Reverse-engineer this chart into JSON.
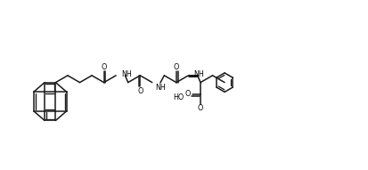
{
  "background_color": "#ffffff",
  "line_color": "#1a1a1a",
  "line_width": 1.1,
  "figsize": [
    4.13,
    1.91
  ],
  "dpi": 100,
  "xlim": [
    0,
    10
  ],
  "ylim": [
    0,
    4.6
  ]
}
